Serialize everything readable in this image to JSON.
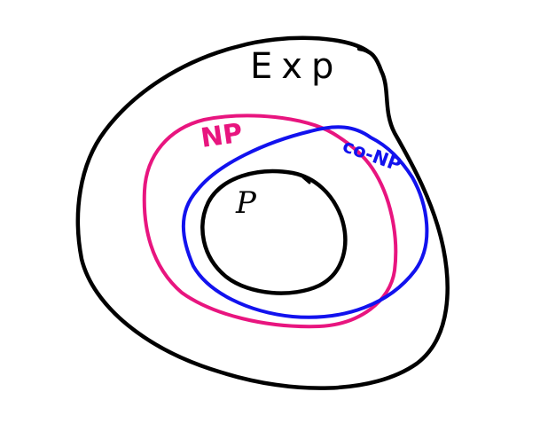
{
  "diagram": {
    "sets": [
      {
        "id": "exp",
        "label": "Exp",
        "color": "#000000"
      },
      {
        "id": "np",
        "label": "NP",
        "color": "#e8157f"
      },
      {
        "id": "co_np",
        "label": "co-NP",
        "color": "#1212ee"
      },
      {
        "id": "p",
        "label": "P",
        "color": "#000000"
      }
    ]
  }
}
